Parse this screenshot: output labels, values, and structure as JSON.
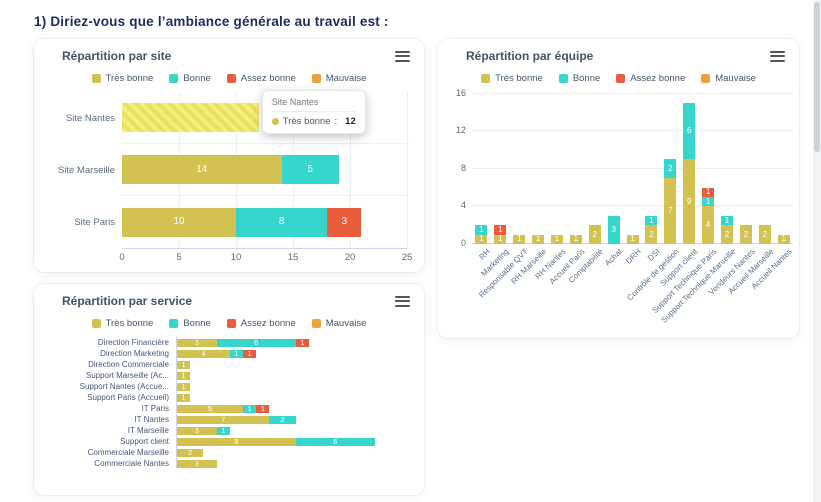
{
  "page": {
    "title": "1) Diriez-vous que l’ambiance générale au travail est :"
  },
  "icons": {
    "chart_context_menu": "hamburger-menu"
  },
  "colors": {
    "tres_bonne": "#d1c251",
    "bonne": "#37d6cd",
    "assez_bonne": "#e95c3c",
    "mauvaise": "#e9a43e",
    "highlight_base": "#f3ee7d",
    "highlight_stripe": "#e8e05f",
    "title_text": "#1d2c5f",
    "panel_title_text": "#44536b",
    "axis_label_text": "#5b6e8e"
  },
  "chart_data": [
    {
      "id": "site",
      "type": "bar",
      "title": "Répartition par site",
      "stacked": true,
      "legend_position": "top",
      "grid": true,
      "categories": [
        "Site Nantes",
        "Site Marseille",
        "Site Paris"
      ],
      "series": [
        {
          "name": "Très bonne",
          "values": [
            12,
            14,
            10
          ]
        },
        {
          "name": "Bonne",
          "values": [
            0,
            5,
            8
          ]
        },
        {
          "name": "Assez bonne",
          "values": [
            0,
            0,
            3
          ]
        },
        {
          "name": "Mauvaise",
          "values": [
            0,
            0,
            0
          ]
        }
      ],
      "xlim": [
        0,
        25
      ],
      "xticks": [
        0,
        5,
        10,
        15,
        20,
        25
      ],
      "highlighted_category": "Site Nantes",
      "tooltip": {
        "header": "Site Nantes",
        "series": "Très bonne",
        "value": 12
      }
    },
    {
      "id": "equipe",
      "type": "column",
      "title": "Répartition par équipe",
      "stacked": true,
      "legend_position": "top",
      "grid": true,
      "xlabel_rotation": -45,
      "categories": [
        "RH",
        "Marketing",
        "Responsable QVT",
        "RH Marseille",
        "RH Nantes",
        "Accueil Paris",
        "Comptabilité",
        "Achat",
        "DRH",
        "DSI",
        "Contrôle de gestion",
        "Support client",
        "Support Technique Paris",
        "Support Technique Marseille",
        "Vendeurs Nantes",
        "Accueil Marseille",
        "Accueil Nantes"
      ],
      "series": [
        {
          "name": "Très bonne",
          "values": [
            1,
            1,
            1,
            1,
            1,
            1,
            2,
            0,
            1,
            2,
            7,
            9,
            4,
            2,
            2,
            2,
            1
          ]
        },
        {
          "name": "Bonne",
          "values": [
            1,
            0,
            0,
            0,
            0,
            0,
            0,
            3,
            0,
            1,
            2,
            6,
            1,
            1,
            0,
            0,
            0
          ]
        },
        {
          "name": "Assez bonne",
          "values": [
            0,
            1,
            0,
            0,
            0,
            0,
            0,
            0,
            0,
            0,
            0,
            0,
            1,
            0,
            0,
            0,
            0
          ]
        },
        {
          "name": "Mauvaise",
          "values": [
            0,
            0,
            0,
            0,
            0,
            0,
            0,
            0,
            0,
            0,
            0,
            0,
            0,
            0,
            0,
            0,
            0
          ]
        }
      ],
      "ylim": [
        0,
        16
      ],
      "yticks": [
        0,
        4,
        8,
        12,
        16
      ]
    },
    {
      "id": "service",
      "type": "bar",
      "title": "Répartition par service",
      "stacked": true,
      "legend_position": "top",
      "categories": [
        "Direction Financière",
        "Direction Marketing",
        "Direction Commerciale",
        "Support Marseille (Ac...",
        "Support Nantes (Accue...",
        "Support Paris (Accueil)",
        "IT Paris",
        "IT Nantes",
        "IT Marseille",
        "Support client",
        "Commerciale Marseille",
        "Commerciale Nantes"
      ],
      "series": [
        {
          "name": "Très bonne",
          "values": [
            3,
            4,
            1,
            1,
            1,
            1,
            5,
            7,
            3,
            9,
            2,
            3
          ]
        },
        {
          "name": "Bonne",
          "values": [
            6,
            1,
            0,
            0,
            0,
            0,
            1,
            2,
            1,
            6,
            0,
            0
          ]
        },
        {
          "name": "Assez bonne",
          "values": [
            1,
            1,
            0,
            0,
            0,
            0,
            1,
            0,
            0,
            0,
            0,
            0
          ]
        },
        {
          "name": "Mauvaise",
          "values": [
            0,
            0,
            0,
            0,
            0,
            0,
            0,
            0,
            0,
            0,
            0,
            0
          ]
        }
      ]
    }
  ]
}
